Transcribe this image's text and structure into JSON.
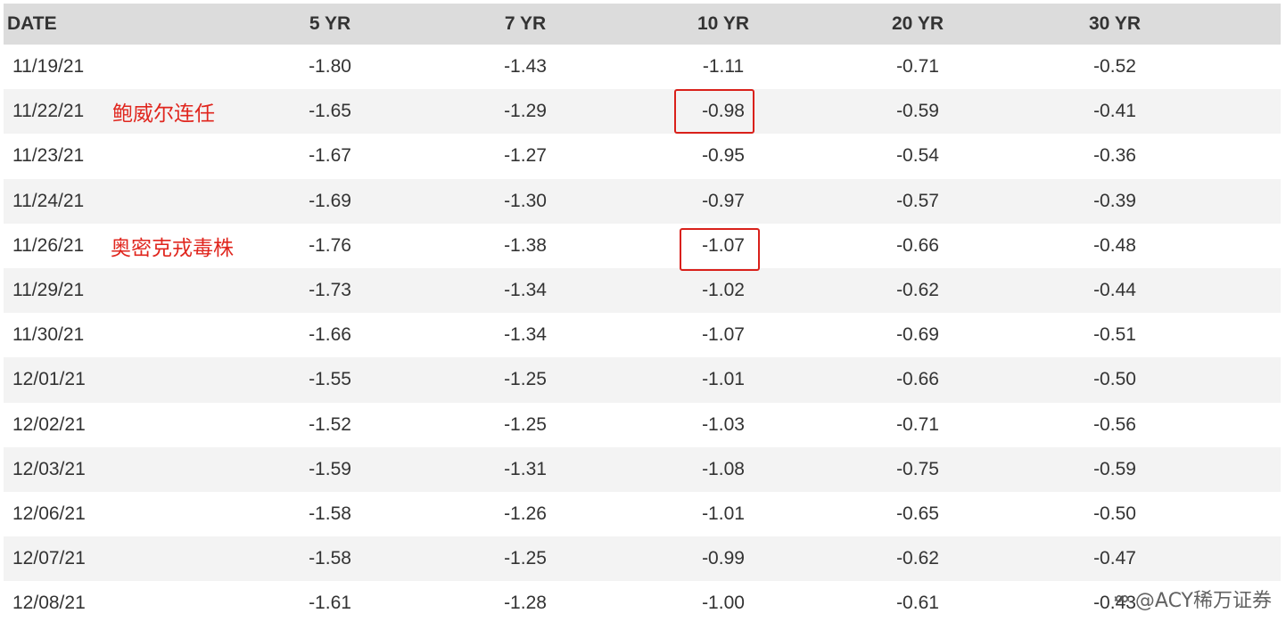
{
  "table": {
    "headers": [
      "DATE",
      "5 YR",
      "7 YR",
      "10 YR",
      "20 YR",
      "30 YR"
    ],
    "rows": [
      {
        "date": "11/19/21",
        "note": "",
        "v5": "-1.80",
        "v7": "-1.43",
        "v10": "-1.11",
        "v20": "-0.71",
        "v30": "-0.52"
      },
      {
        "date": "11/22/21",
        "note": "鲍威尔连任",
        "v5": "-1.65",
        "v7": "-1.29",
        "v10": "-0.98",
        "v20": "-0.59",
        "v30": "-0.41"
      },
      {
        "date": "11/23/21",
        "note": "",
        "v5": "-1.67",
        "v7": "-1.27",
        "v10": "-0.95",
        "v20": "-0.54",
        "v30": "-0.36"
      },
      {
        "date": "11/24/21",
        "note": "",
        "v5": "-1.69",
        "v7": "-1.30",
        "v10": "-0.97",
        "v20": "-0.57",
        "v30": "-0.39"
      },
      {
        "date": "11/26/21",
        "note": "奥密克戎毒株",
        "v5": "-1.76",
        "v7": "-1.38",
        "v10": "-1.07",
        "v20": "-0.66",
        "v30": "-0.48"
      },
      {
        "date": "11/29/21",
        "note": "",
        "v5": "-1.73",
        "v7": "-1.34",
        "v10": "-1.02",
        "v20": "-0.62",
        "v30": "-0.44"
      },
      {
        "date": "11/30/21",
        "note": "",
        "v5": "-1.66",
        "v7": "-1.34",
        "v10": "-1.07",
        "v20": "-0.69",
        "v30": "-0.51"
      },
      {
        "date": "12/01/21",
        "note": "",
        "v5": "-1.55",
        "v7": "-1.25",
        "v10": "-1.01",
        "v20": "-0.66",
        "v30": "-0.50"
      },
      {
        "date": "12/02/21",
        "note": "",
        "v5": "-1.52",
        "v7": "-1.25",
        "v10": "-1.03",
        "v20": "-0.71",
        "v30": "-0.56"
      },
      {
        "date": "12/03/21",
        "note": "",
        "v5": "-1.59",
        "v7": "-1.31",
        "v10": "-1.08",
        "v20": "-0.75",
        "v30": "-0.59"
      },
      {
        "date": "12/06/21",
        "note": "",
        "v5": "-1.58",
        "v7": "-1.26",
        "v10": "-1.01",
        "v20": "-0.65",
        "v30": "-0.50"
      },
      {
        "date": "12/07/21",
        "note": "",
        "v5": "-1.58",
        "v7": "-1.25",
        "v10": "-0.99",
        "v20": "-0.62",
        "v30": "-0.47"
      },
      {
        "date": "12/08/21",
        "note": "",
        "v5": "-1.61",
        "v7": "-1.28",
        "v10": "-1.00",
        "v20": "-0.61",
        "v30": "-0.43"
      }
    ]
  },
  "watermark": {
    "text": "@ACY稀万证券"
  },
  "colors": {
    "annotation": "#e0261e",
    "header_bg": "#dcdcdc",
    "stripe_bg": "#f3f3f3"
  }
}
